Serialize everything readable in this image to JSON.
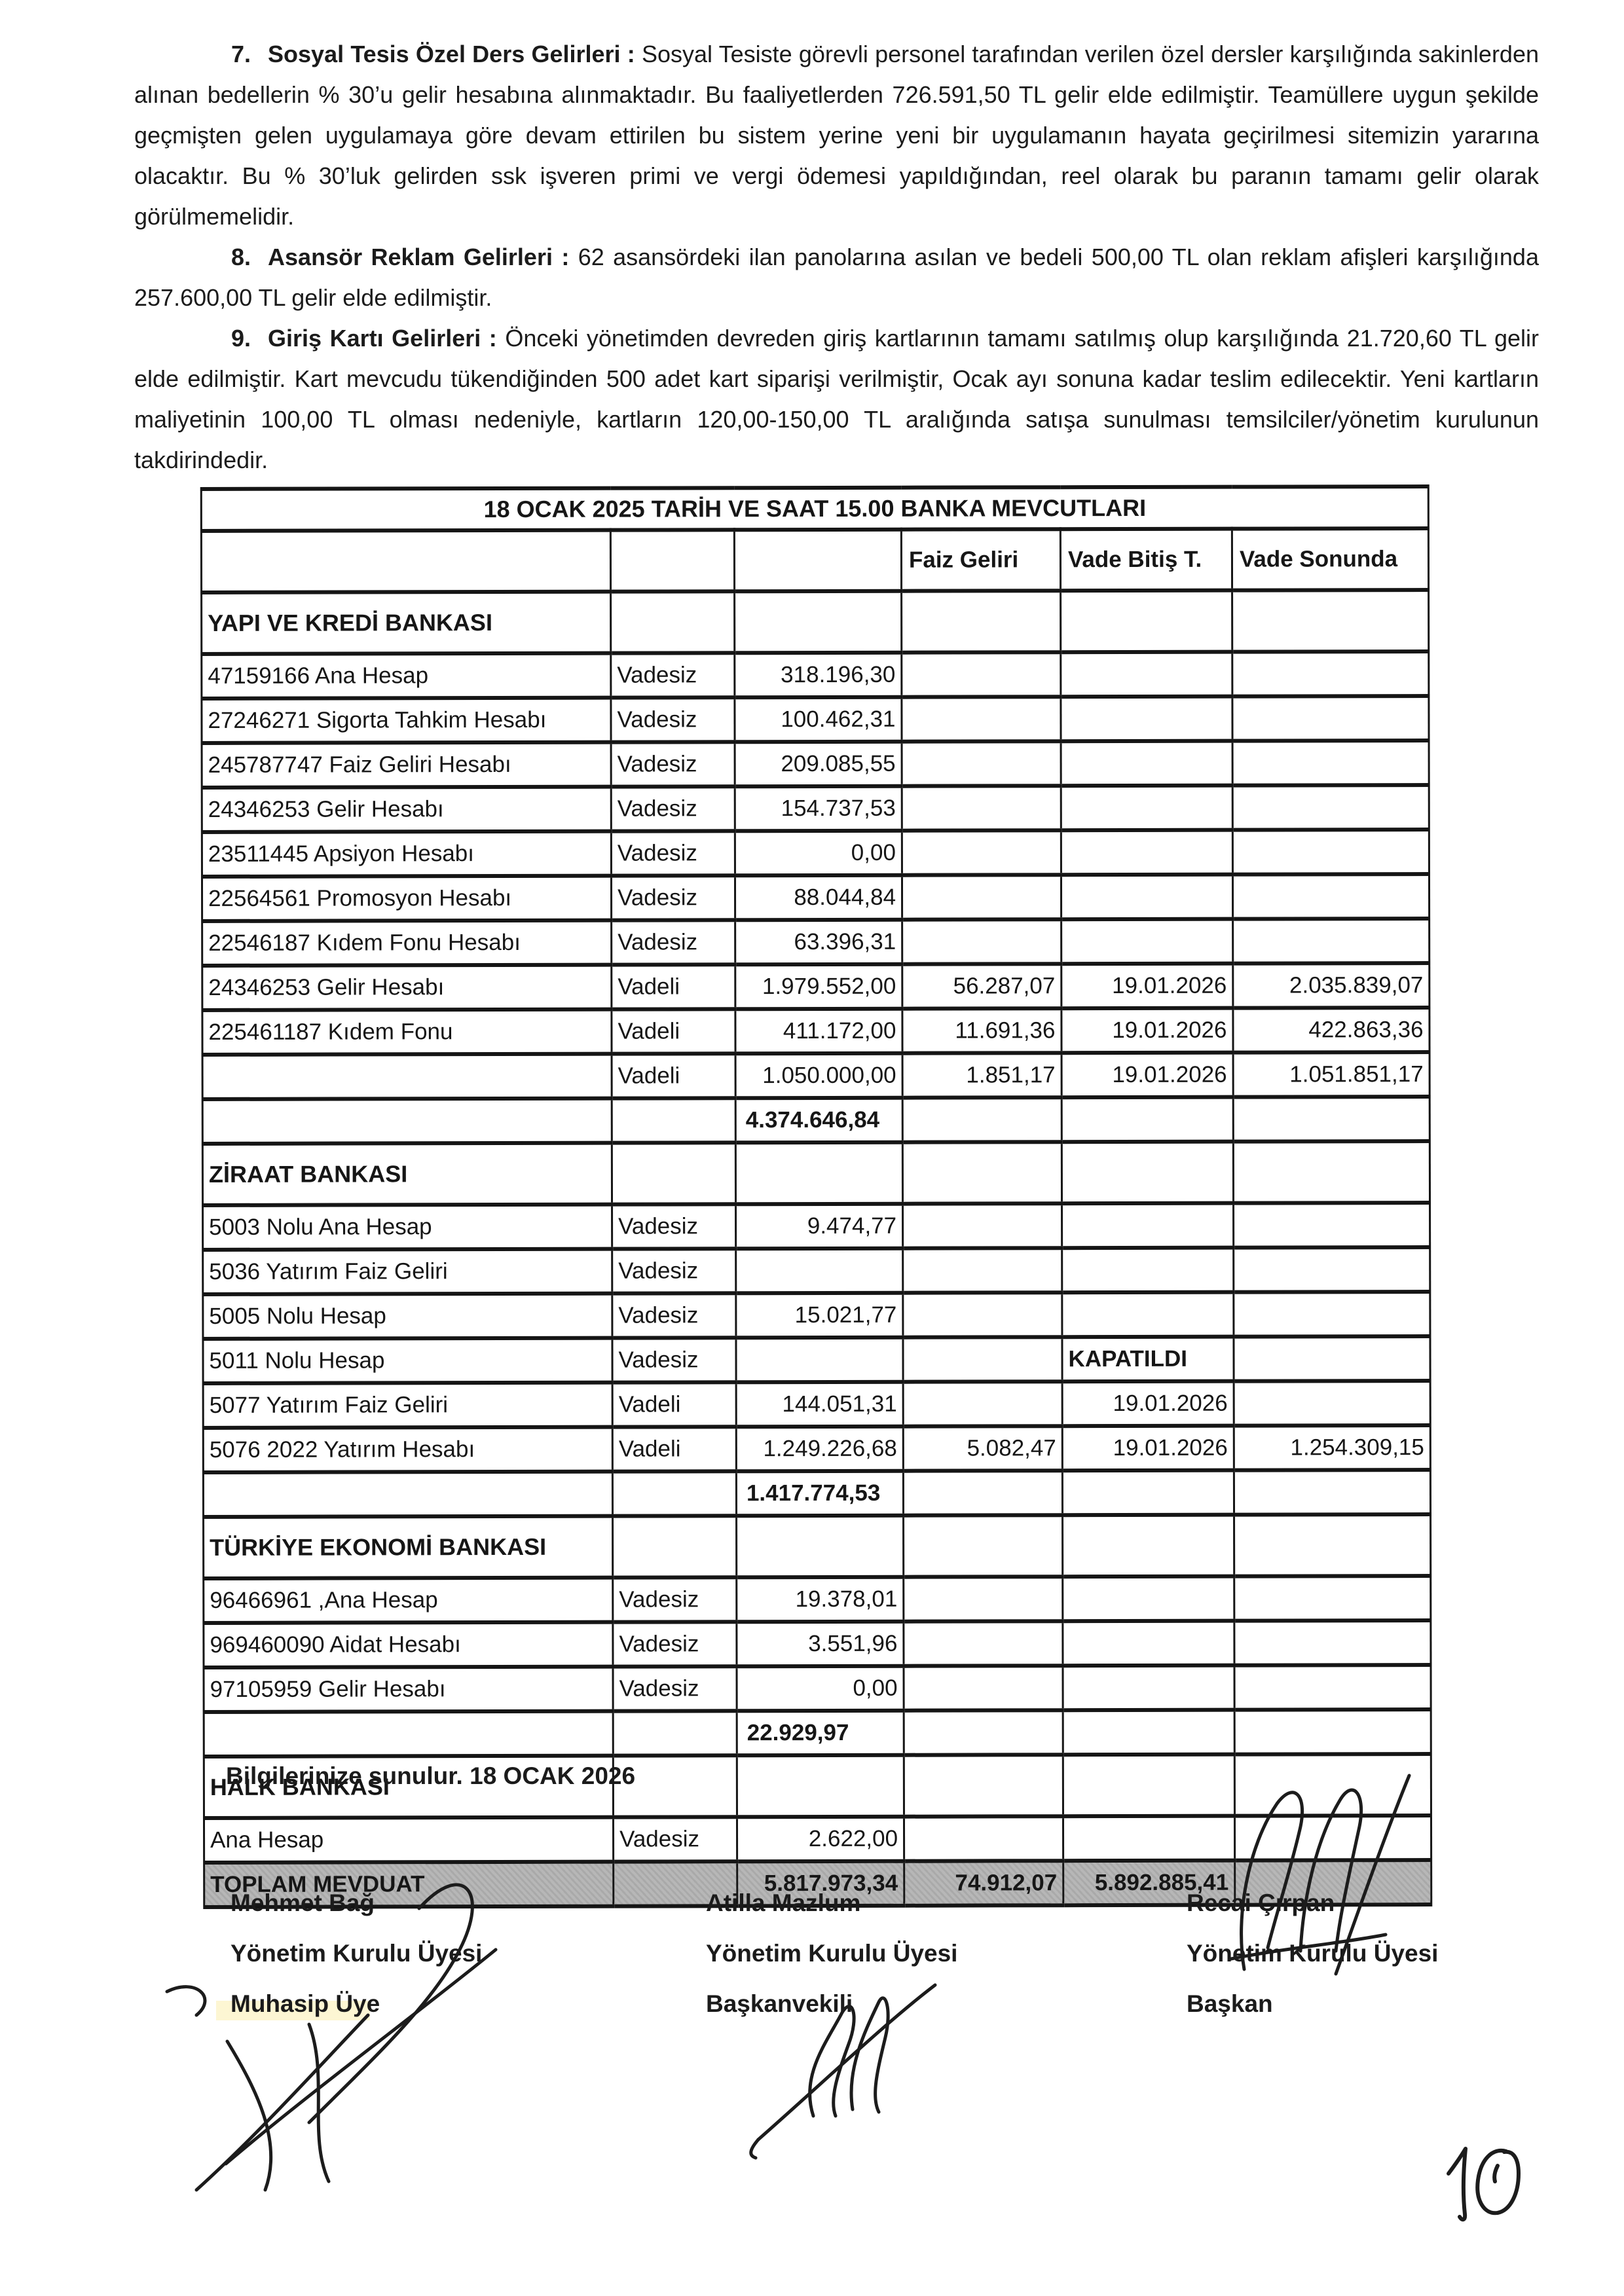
{
  "paragraphs": [
    {
      "number": "7.",
      "title": "Sosyal Tesis Özel Ders Gelirleri :",
      "body": "Sosyal Tesiste görevli personel tarafından verilen özel dersler karşılığında sakinlerden alınan bedellerin % 30’u gelir hesabına alınmaktadır. Bu faaliyetlerden 726.591,50 TL gelir elde edilmiştir. Teamüllere uygun şekilde geçmişten gelen uygulamaya göre devam ettirilen bu sistem yerine yeni bir uygulamanın hayata geçirilmesi sitemizin yararına olacaktır. Bu % 30’luk gelirden ssk işveren primi ve vergi ödemesi yapıldığından, reel olarak bu paranın tamamı gelir olarak görülmemelidir."
    },
    {
      "number": "8.",
      "title": "Asansör Reklam Gelirleri :",
      "body": "62 asansördeki ilan panolarına asılan ve bedeli 500,00 TL olan reklam afişleri karşılığında 257.600,00 TL gelir elde edilmiştir."
    },
    {
      "number": "9.",
      "title": "Giriş Kartı Gelirleri :",
      "body": "Önceki yönetimden devreden giriş kartlarının tamamı satılmış olup karşılığında 21.720,60 TL gelir elde edilmiştir. Kart mevcudu tükendiğinden 500 adet kart siparişi verilmiştir, Ocak ayı sonuna kadar teslim edilecektir. Yeni kartların maliyetinin 100,00 TL olması nedeniyle, kartların 120,00-150,00 TL aralığında satışa sunulması temsilciler/yönetim kurulunun takdirindedir."
    }
  ],
  "table": {
    "title": "18 OCAK 2025 TARİH VE SAAT 15.00 BANKA MEVCUTLARI",
    "columns": [
      "",
      "",
      "",
      "Faiz Geliri",
      "Vade Bitiş T.",
      "Vade Sonunda"
    ],
    "rows": [
      {
        "type": "section",
        "cells": [
          "YAPI VE KREDİ BANKASI",
          "",
          "",
          "",
          "",
          ""
        ]
      },
      {
        "type": "data",
        "cells": [
          "47159166 Ana Hesap",
          "Vadesiz",
          "318.196,30",
          "",
          "",
          ""
        ]
      },
      {
        "type": "data",
        "cells": [
          "27246271 Sigorta Tahkim Hesabı",
          "Vadesiz",
          "100.462,31",
          "",
          "",
          ""
        ]
      },
      {
        "type": "data",
        "cells": [
          "245787747 Faiz Geliri Hesabı",
          "Vadesiz",
          "209.085,55",
          "",
          "",
          ""
        ]
      },
      {
        "type": "data",
        "cells": [
          "24346253 Gelir Hesabı",
          "Vadesiz",
          "154.737,53",
          "",
          "",
          ""
        ]
      },
      {
        "type": "data",
        "cells": [
          "23511445 Apsiyon Hesabı",
          "Vadesiz",
          "0,00",
          "",
          "",
          ""
        ]
      },
      {
        "type": "data",
        "cells": [
          "22564561 Promosyon Hesabı",
          "Vadesiz",
          "88.044,84",
          "",
          "",
          ""
        ]
      },
      {
        "type": "data",
        "cells": [
          "22546187 Kıdem Fonu Hesabı",
          "Vadesiz",
          "63.396,31",
          "",
          "",
          ""
        ]
      },
      {
        "type": "data",
        "cells": [
          "24346253 Gelir Hesabı",
          "Vadeli",
          "1.979.552,00",
          "56.287,07",
          "19.01.2026",
          "2.035.839,07"
        ]
      },
      {
        "type": "data",
        "cells": [
          "225461187 Kıdem Fonu",
          "Vadeli",
          "411.172,00",
          "11.691,36",
          "19.01.2026",
          "422.863,36"
        ]
      },
      {
        "type": "data",
        "cells": [
          "",
          "Vadeli",
          "1.050.000,00",
          "1.851,17",
          "19.01.2026",
          "1.051.851,17"
        ]
      },
      {
        "type": "subtotal",
        "cells": [
          "",
          "",
          "4.374.646,84",
          "",
          "",
          ""
        ]
      },
      {
        "type": "section",
        "cells": [
          "ZİRAAT BANKASI",
          "",
          "",
          "",
          "",
          ""
        ]
      },
      {
        "type": "data",
        "cells": [
          "5003 Nolu Ana Hesap",
          "Vadesiz",
          "9.474,77",
          "",
          "",
          ""
        ]
      },
      {
        "type": "data",
        "cells": [
          "5036 Yatırım Faiz Geliri",
          "Vadesiz",
          "",
          "",
          "",
          ""
        ]
      },
      {
        "type": "data",
        "cells": [
          "5005 Nolu Hesap",
          "Vadesiz",
          "15.021,77",
          "",
          "",
          ""
        ]
      },
      {
        "type": "data",
        "note_col": 4,
        "cells": [
          "5011 Nolu Hesap",
          "Vadesiz",
          "",
          "",
          "KAPATILDI",
          ""
        ]
      },
      {
        "type": "data",
        "cells": [
          "5077 Yatırım Faiz Geliri",
          "Vadeli",
          "144.051,31",
          "",
          "19.01.2026",
          ""
        ]
      },
      {
        "type": "data",
        "cells": [
          "5076 2022 Yatırım Hesabı",
          "Vadeli",
          "1.249.226,68",
          "5.082,47",
          "19.01.2026",
          "1.254.309,15"
        ]
      },
      {
        "type": "subtotal",
        "cells": [
          "",
          "",
          "1.417.774,53",
          "",
          "",
          ""
        ]
      },
      {
        "type": "section",
        "cells": [
          "TÜRKİYE EKONOMİ BANKASI",
          "",
          "",
          "",
          "",
          ""
        ]
      },
      {
        "type": "data",
        "cells": [
          "96466961 ,Ana Hesap",
          "Vadesiz",
          "19.378,01",
          "",
          "",
          ""
        ]
      },
      {
        "type": "data",
        "cells": [
          "969460090 Aidat Hesabı",
          "Vadesiz",
          "3.551,96",
          "",
          "",
          ""
        ]
      },
      {
        "type": "data",
        "cells": [
          "97105959 Gelir Hesabı",
          "Vadesiz",
          "0,00",
          "",
          "",
          ""
        ]
      },
      {
        "type": "subtotal",
        "cells": [
          "",
          "",
          "22.929,97",
          "",
          "",
          ""
        ]
      },
      {
        "type": "section",
        "cells": [
          "HALK BANKASI",
          "",
          "",
          "",
          "",
          ""
        ]
      },
      {
        "type": "data",
        "cells": [
          "Ana Hesap",
          "Vadesiz",
          "2.622,00",
          "",
          "",
          ""
        ]
      },
      {
        "type": "total",
        "cells": [
          "TOPLAM MEVDUAT",
          "",
          "5.817.973,34",
          "74.912,07",
          "5.892.885,41",
          ""
        ]
      }
    ]
  },
  "closing": "Bilgilerinize sunulur. 18 OCAK 2026",
  "signatures": [
    {
      "name": "Mehmet Bağ",
      "role1": "Yönetim Kurulu Üyesi",
      "role2": "Muhasip Üye"
    },
    {
      "name": "Atilla Mazlum",
      "role1": "Yönetim Kurulu Üyesi",
      "role2": "Başkanvekili"
    },
    {
      "name": "Recai Çırpan",
      "role1": "Yönetim Kurulu Üyesi",
      "role2": "Başkan"
    }
  ],
  "page_number": "10"
}
